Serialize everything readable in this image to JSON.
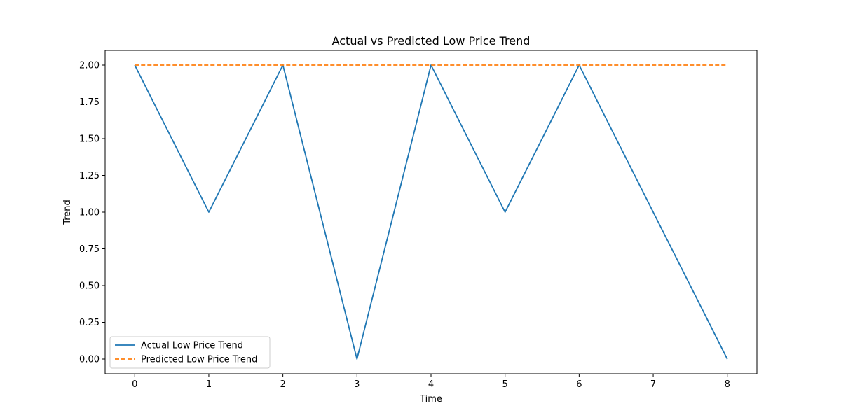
{
  "chart_data": {
    "type": "line",
    "title": "Actual vs Predicted Low Price Trend",
    "xlabel": "Time",
    "ylabel": "Trend",
    "x": [
      0,
      1,
      2,
      3,
      4,
      5,
      6,
      7,
      8
    ],
    "xlim": [
      -0.4,
      8.4
    ],
    "ylim": [
      -0.1,
      2.1
    ],
    "xticks": [
      0,
      1,
      2,
      3,
      4,
      5,
      6,
      7,
      8
    ],
    "yticks": [
      0.0,
      0.25,
      0.5,
      0.75,
      1.0,
      1.25,
      1.5,
      1.75,
      2.0
    ],
    "ytick_labels": [
      "0.00",
      "0.25",
      "0.50",
      "0.75",
      "1.00",
      "1.25",
      "1.50",
      "1.75",
      "2.00"
    ],
    "grid": false,
    "legend_position": "lower-left",
    "series": [
      {
        "name": "Actual Low Price Trend",
        "values": [
          2,
          1,
          2,
          0,
          2,
          1,
          2,
          1,
          0
        ],
        "color": "#1f77b4",
        "style": "solid"
      },
      {
        "name": "Predicted Low Price Trend",
        "values": [
          2,
          2,
          2,
          2,
          2,
          2,
          2,
          2,
          2
        ],
        "color": "#ff7f0e",
        "style": "dashed"
      }
    ]
  }
}
